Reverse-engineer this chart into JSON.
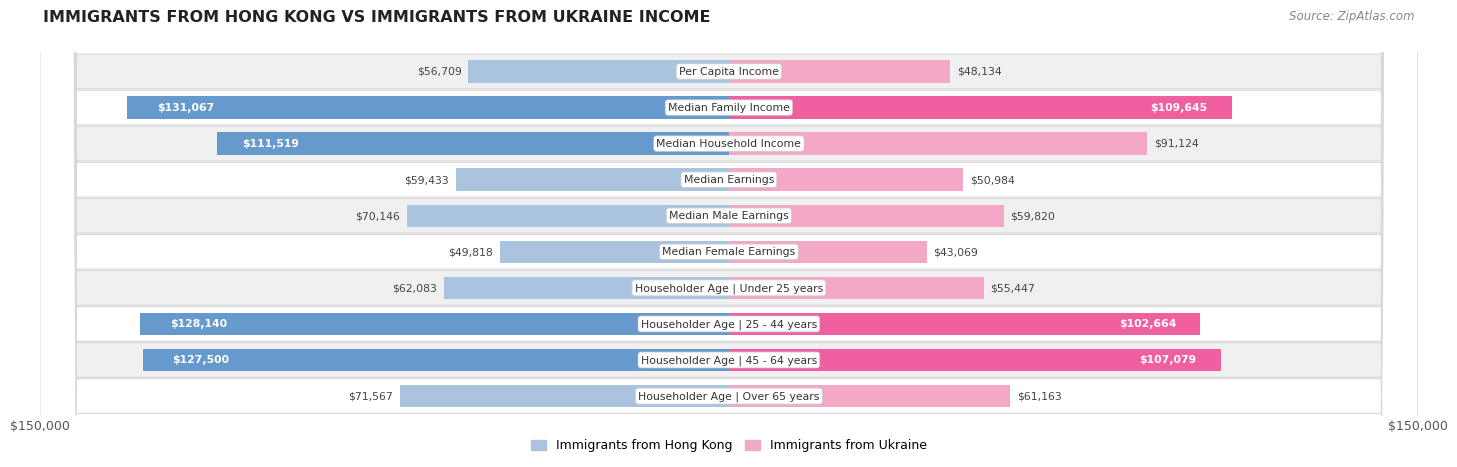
{
  "title": "IMMIGRANTS FROM HONG KONG VS IMMIGRANTS FROM UKRAINE INCOME",
  "source": "Source: ZipAtlas.com",
  "categories": [
    "Per Capita Income",
    "Median Family Income",
    "Median Household Income",
    "Median Earnings",
    "Median Male Earnings",
    "Median Female Earnings",
    "Householder Age | Under 25 years",
    "Householder Age | 25 - 44 years",
    "Householder Age | 45 - 64 years",
    "Householder Age | Over 65 years"
  ],
  "hk_values": [
    56709,
    131067,
    111519,
    59433,
    70146,
    49818,
    62083,
    128140,
    127500,
    71567
  ],
  "ua_values": [
    48134,
    109645,
    91124,
    50984,
    59820,
    43069,
    55447,
    102664,
    107079,
    61163
  ],
  "hk_labels": [
    "$56,709",
    "$131,067",
    "$111,519",
    "$59,433",
    "$70,146",
    "$49,818",
    "$62,083",
    "$128,140",
    "$127,500",
    "$71,567"
  ],
  "ua_labels": [
    "$48,134",
    "$109,645",
    "$91,124",
    "$50,984",
    "$59,820",
    "$43,069",
    "$55,447",
    "$102,664",
    "$107,079",
    "$61,163"
  ],
  "hk_color_dark": "#6699cc",
  "hk_color_light": "#aac4e0",
  "ua_color_dark": "#f060a0",
  "ua_color_light": "#f4a8c8",
  "hk_inside_threshold": 100000,
  "ua_inside_threshold": 100000,
  "max_value": 150000,
  "legend_hk": "Immigrants from Hong Kong",
  "legend_ua": "Immigrants from Ukraine",
  "row_colors": [
    "#f0f0f0",
    "#ffffff"
  ],
  "bar_height": 0.62,
  "xlabel_left": "$150,000",
  "xlabel_right": "$150,000"
}
